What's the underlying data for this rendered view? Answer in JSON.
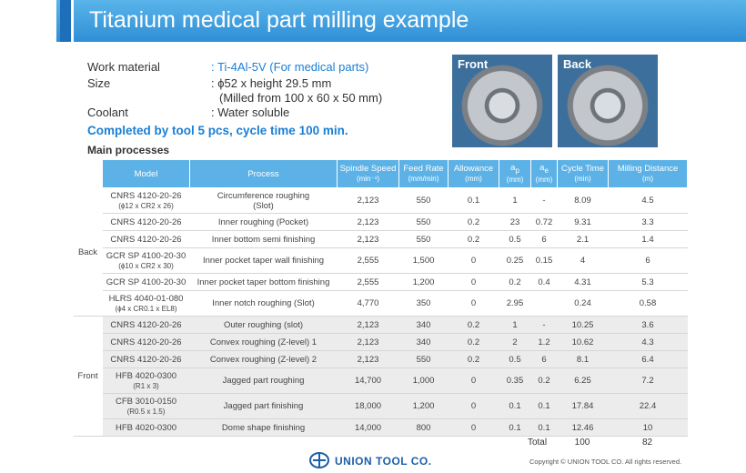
{
  "header": {
    "title": "Titanium medical part milling example"
  },
  "specs": [
    {
      "label": "Work material",
      "value": [
        ": Ti-4Al-5V (For medical parts)"
      ]
    },
    {
      "label": "Size",
      "value": [
        ": ϕ52 x height 29.5 mm",
        "(Milled from 100 x 60 x 50 mm)"
      ]
    },
    {
      "label": "Coolant",
      "value": [
        ": Water soluble"
      ]
    }
  ],
  "summary": "Completed by tool 5 pcs, cycle time 100 min.",
  "section": "Main processes",
  "photos": [
    {
      "label": "Front"
    },
    {
      "label": "Back"
    }
  ],
  "table": {
    "headers": [
      {
        "text": "Model"
      },
      {
        "text": "Process"
      },
      {
        "text": "Spindle Speed",
        "unit": "(min⁻¹)"
      },
      {
        "text": "Feed Rate",
        "unit": "(mm/min)"
      },
      {
        "text": "Allowance",
        "unit": "(mm)"
      },
      {
        "text": "a",
        "sub": "p",
        "unit": "(mm)"
      },
      {
        "text": "a",
        "sub": "e",
        "unit": "(mm)"
      },
      {
        "text": "Cycle Time",
        "unit": "(min)"
      },
      {
        "text": "Milling Distance",
        "unit": "(m)"
      }
    ],
    "groups": [
      {
        "name": "Back",
        "rows": [
          {
            "model": [
              "CNRS 4120-20-26",
              "(ϕ12 x CR2 x 26)"
            ],
            "process": [
              "Circumference roughing",
              "(Slot)"
            ],
            "cells": [
              "2,123",
              "550",
              "0.1",
              "1",
              "-",
              "8.09",
              "4.5"
            ]
          },
          {
            "model": [
              "CNRS 4120-20-26"
            ],
            "process": [
              "Inner roughing (Pocket)"
            ],
            "cells": [
              "2,123",
              "550",
              "0.2",
              "23",
              "0.72",
              "9.31",
              "3.3"
            ]
          },
          {
            "model": [
              "CNRS 4120-20-26"
            ],
            "process": [
              "Inner bottom semi finishing"
            ],
            "cells": [
              "2,123",
              "550",
              "0.2",
              "0.5",
              "6",
              "2.1",
              "1.4"
            ]
          },
          {
            "model": [
              "GCR SP 4100-20-30",
              "(ϕ10 x CR2 x 30)"
            ],
            "process": [
              "Inner pocket taper wall finishing"
            ],
            "cells": [
              "2,555",
              "1,500",
              "0",
              "0.25",
              "0.15",
              "4",
              "6"
            ]
          },
          {
            "model": [
              "GCR SP 4100-20-30"
            ],
            "process": [
              "Inner pocket taper bottom finishing"
            ],
            "cells": [
              "2,555",
              "1,200",
              "0",
              "0.2",
              "0.4",
              "4.31",
              "5.3"
            ]
          },
          {
            "model": [
              "HLRS 4040-01-080",
              "(ϕ4 x CR0.1 x EL8)"
            ],
            "process": [
              "Inner notch roughing (Slot)"
            ],
            "cells": [
              "4,770",
              "350",
              "0",
              "2.95",
              null,
              "0.24",
              "0.58"
            ]
          }
        ]
      },
      {
        "name": "Front",
        "rows": [
          {
            "model": [
              "CNRS 4120-20-26"
            ],
            "process": [
              "Outer roughing (slot)"
            ],
            "cells": [
              "2,123",
              "340",
              "0.2",
              "1",
              "-",
              "10.25",
              "3.6"
            ]
          },
          {
            "model": [
              "CNRS 4120-20-26"
            ],
            "process": [
              "Convex roughing (Z-level) 1"
            ],
            "cells": [
              "2,123",
              "340",
              "0.2",
              "2",
              "1.2",
              "10.62",
              "4.3"
            ]
          },
          {
            "model": [
              "CNRS 4120-20-26"
            ],
            "process": [
              "Convex roughing (Z-level) 2"
            ],
            "cells": [
              "2,123",
              "550",
              "0.2",
              "0.5",
              "6",
              "8.1",
              "6.4"
            ]
          },
          {
            "model": [
              "HFB 4020-0300",
              "(R1 x 3)"
            ],
            "process": [
              "Jagged part roughing"
            ],
            "cells": [
              "14,700",
              "1,000",
              "0",
              "0.35",
              "0.2",
              "6.25",
              "7.2"
            ]
          },
          {
            "model": [
              "CFB 3010-0150",
              "(R0.5 x 1.5)"
            ],
            "process": [
              "Jagged part finishing"
            ],
            "cells": [
              "18,000",
              "1,200",
              "0",
              "0.1",
              "0.1",
              "17.84",
              "22.4"
            ]
          },
          {
            "model": [
              "HFB 4020-0300"
            ],
            "process": [
              "Dome shape finishing"
            ],
            "cells": [
              "14,000",
              "800",
              "0",
              "0.1",
              "0.1",
              "12.46",
              "10"
            ]
          }
        ]
      }
    ],
    "total": {
      "label": "Total",
      "cycle_time": "100",
      "milling_distance": "82"
    }
  },
  "footer": {
    "company": "UNION TOOL CO.",
    "copyright": "Copyright © UNION TOOL CO. All rights reserved."
  }
}
